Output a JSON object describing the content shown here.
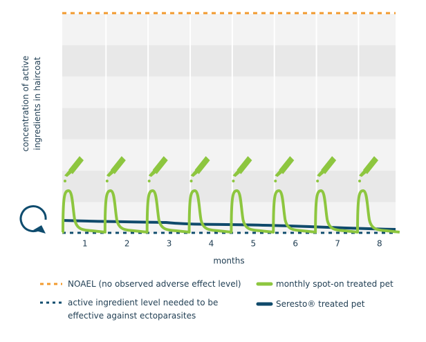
{
  "chart_data": {
    "type": "line",
    "y_label": "concentration of active ingredients in haircoat",
    "x_label": "months",
    "xticks": [
      1,
      2,
      3,
      4,
      5,
      6,
      7,
      8
    ],
    "xlim": [
      0.46,
      8.38
    ],
    "series": [
      {
        "name": "NOAEL (no observed adverse effect level)",
        "color": "#f29a2e"
      },
      {
        "name": "active ingredient level needed to be effective against ectoparasites",
        "color": "#0f4c6e"
      },
      {
        "name": "monthly spot-on treated pet",
        "color": "#8dc63f"
      },
      {
        "name": "Seresto® treated pet",
        "color": "#0f4a6b"
      }
    ]
  }
}
